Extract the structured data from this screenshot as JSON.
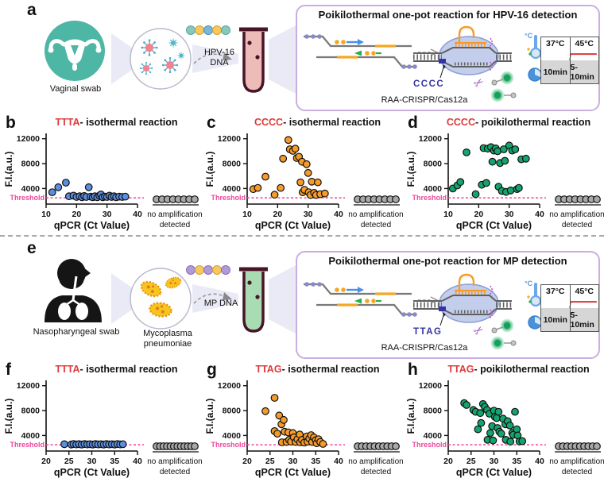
{
  "colors": {
    "accent_red": "#e03a3a",
    "threshold_pink": "#f0459a",
    "blue_point": "#5c8ee0",
    "orange_point": "#f59b2c",
    "green_point": "#14a56f",
    "gray_point": "#a8a8a8",
    "box_border": "#c9aee0",
    "teal_icon": "#4db6a4",
    "pam_navy": "#3434a4"
  },
  "panels": {
    "a": {
      "label": "a",
      "sample_label": "Vaginal swab",
      "dna_label": "HPV-16 DNA",
      "box": {
        "title": "Poikilothermal one-pot reaction for HPV-16 detection",
        "pam_label": "CCCC",
        "system_label": "RAA-CRISPR/Cas12a",
        "thermo_label": "°C",
        "temp_table": {
          "temps": [
            "37°C",
            "45°C"
          ],
          "times": [
            "10min",
            "5-10min"
          ]
        }
      }
    },
    "e": {
      "label": "e",
      "sample_label": "Nasopharyngeal swab",
      "organism_label": "Mycoplasma pneumoniae",
      "dna_label": "MP DNA",
      "box": {
        "title": "Poikilothermal one-pot reaction for MP detection",
        "pam_label": "TTAG",
        "system_label": "RAA-CRISPR/Cas12a",
        "thermo_label": "°C",
        "temp_table": {
          "temps": [
            "37°C",
            "45°C"
          ],
          "times": [
            "10min",
            "5-10min"
          ]
        }
      }
    }
  },
  "chart_data": [
    {
      "id": "b",
      "panel_label": "b",
      "type": "scatter",
      "title_highlight": "TTTA",
      "title_rest": "- isothermal reaction",
      "xlabel": "qPCR (Ct Value)",
      "ylabel": "F.I.(a.u.)",
      "xlim": [
        10,
        40
      ],
      "ylim": [
        1500,
        12600
      ],
      "xticks": [
        10,
        20,
        30,
        40
      ],
      "yticks": [
        4000,
        8000,
        12000
      ],
      "threshold_label": "Threshold",
      "threshold_value": 2500,
      "threshold_color": "#f0459a",
      "point_color": "#5c8ee0",
      "no_amp_points": 8,
      "no_amp_label_line1": "no amplification",
      "no_amp_label_line2": "detected",
      "points": [
        [
          12,
          3400
        ],
        [
          14,
          4200
        ],
        [
          16.5,
          4950
        ],
        [
          17.5,
          2750
        ],
        [
          19,
          2850
        ],
        [
          20,
          2650
        ],
        [
          21,
          2750
        ],
        [
          21.8,
          2600
        ],
        [
          22.5,
          2800
        ],
        [
          23.2,
          2650
        ],
        [
          24,
          4200
        ],
        [
          24.6,
          2700
        ],
        [
          25.3,
          2600
        ],
        [
          26,
          2750
        ],
        [
          26.8,
          2600
        ],
        [
          27.5,
          2850
        ],
        [
          28,
          3050
        ],
        [
          28.6,
          2600
        ],
        [
          29.3,
          2700
        ],
        [
          30,
          2650
        ],
        [
          30.8,
          2850
        ],
        [
          31.5,
          2650
        ],
        [
          32.3,
          2750
        ],
        [
          33,
          2600
        ],
        [
          34,
          2700
        ],
        [
          35,
          2650
        ],
        [
          36,
          2700
        ]
      ]
    },
    {
      "id": "c",
      "panel_label": "c",
      "type": "scatter",
      "title_highlight": "CCCC",
      "title_rest": "- isothermal reaction",
      "xlabel": "qPCR (Ct Value)",
      "ylabel": "F.I.(a.u.)",
      "xlim": [
        10,
        40
      ],
      "ylim": [
        1500,
        12600
      ],
      "xticks": [
        10,
        20,
        30,
        40
      ],
      "yticks": [
        4000,
        8000,
        12000
      ],
      "threshold_label": "Threshold",
      "threshold_value": 2500,
      "threshold_color": "#f0459a",
      "point_color": "#f59b2c",
      "no_amp_points": 8,
      "no_amp_label_line1": "no amplification",
      "no_amp_label_line2": "detected",
      "points": [
        [
          12,
          3900
        ],
        [
          13.5,
          4100
        ],
        [
          16,
          5900
        ],
        [
          19,
          3000
        ],
        [
          21,
          4100
        ],
        [
          21.8,
          8800
        ],
        [
          23.5,
          11800
        ],
        [
          24,
          10300
        ],
        [
          25,
          10050
        ],
        [
          25.8,
          10400
        ],
        [
          26.3,
          8900
        ],
        [
          27,
          9100
        ],
        [
          27.5,
          5000
        ],
        [
          28,
          8300
        ],
        [
          28.2,
          3400
        ],
        [
          28.8,
          3800
        ],
        [
          29.5,
          7900
        ],
        [
          30,
          6500
        ],
        [
          30.2,
          3400
        ],
        [
          30.8,
          2950
        ],
        [
          31.2,
          5100
        ],
        [
          32,
          3300
        ],
        [
          32.6,
          2950
        ],
        [
          33.2,
          5000
        ],
        [
          34,
          3100
        ],
        [
          35.5,
          3200
        ]
      ]
    },
    {
      "id": "d",
      "panel_label": "d",
      "type": "scatter",
      "title_highlight": "CCCC",
      "title_rest": "- poikilothermal reaction",
      "xlabel": "qPCR (Ct Value)",
      "ylabel": "F.I.(a.u.)",
      "xlim": [
        10,
        40
      ],
      "ylim": [
        1500,
        12600
      ],
      "xticks": [
        10,
        20,
        30,
        40
      ],
      "yticks": [
        4000,
        8000,
        12000
      ],
      "threshold_label": "Threshold",
      "threshold_value": 2500,
      "threshold_color": "#f0459a",
      "point_color": "#14a56f",
      "no_amp_points": 8,
      "no_amp_label_line1": "no amplification",
      "no_amp_label_line2": "detected",
      "points": [
        [
          11.5,
          4000
        ],
        [
          13,
          4500
        ],
        [
          14,
          5050
        ],
        [
          16,
          9800
        ],
        [
          19,
          3100
        ],
        [
          21,
          4600
        ],
        [
          21.6,
          10500
        ],
        [
          22.5,
          4900
        ],
        [
          23,
          10400
        ],
        [
          24,
          10650
        ],
        [
          24.5,
          8300
        ],
        [
          25,
          10100
        ],
        [
          25.6,
          10450
        ],
        [
          26.2,
          10000
        ],
        [
          26.5,
          4300
        ],
        [
          27,
          8100
        ],
        [
          27.6,
          3600
        ],
        [
          28.2,
          10300
        ],
        [
          28.6,
          8450
        ],
        [
          29,
          3450
        ],
        [
          30,
          10900
        ],
        [
          30.5,
          3700
        ],
        [
          31,
          10100
        ],
        [
          32,
          10300
        ],
        [
          32.6,
          3900
        ],
        [
          33.2,
          4100
        ],
        [
          34,
          8700
        ],
        [
          35.5,
          8800
        ]
      ]
    },
    {
      "id": "f",
      "panel_label": "f",
      "type": "scatter",
      "title_highlight": "TTTA",
      "title_rest": "- isothermal reaction",
      "xlabel": "qPCR (Ct Value)",
      "ylabel": "F.I.(a.u.)",
      "xlim": [
        20,
        40
      ],
      "ylim": [
        1500,
        12600
      ],
      "xticks": [
        20,
        25,
        30,
        35,
        40
      ],
      "yticks": [
        4000,
        8000,
        12000
      ],
      "threshold_label": "Threshold",
      "threshold_value": 2500,
      "threshold_color": "#f0459a",
      "point_color": "#5c8ee0",
      "no_amp_points": 12,
      "no_amp_label_line1": "no amplification",
      "no_amp_label_line2": "detected",
      "points": [
        [
          24,
          2600
        ],
        [
          25.5,
          2550
        ],
        [
          26,
          2620
        ],
        [
          26.6,
          2560
        ],
        [
          27.2,
          2610
        ],
        [
          27.8,
          2550
        ],
        [
          28.4,
          2620
        ],
        [
          29,
          2560
        ],
        [
          29.6,
          2600
        ],
        [
          30.2,
          2550
        ],
        [
          30.8,
          2620
        ],
        [
          31.4,
          2560
        ],
        [
          32,
          2600
        ],
        [
          32.6,
          2550
        ],
        [
          33.2,
          2620
        ],
        [
          33.8,
          2560
        ],
        [
          34.4,
          2600
        ],
        [
          35,
          2550
        ],
        [
          35.6,
          2620
        ],
        [
          36.2,
          2560
        ],
        [
          36.8,
          2600
        ]
      ]
    },
    {
      "id": "g",
      "panel_label": "g",
      "type": "scatter",
      "title_highlight": "TTAG",
      "title_rest": "- isothermal reaction",
      "xlabel": "qPCR (Ct Value)",
      "ylabel": "F.I.(a.u.)",
      "xlim": [
        20,
        40
      ],
      "ylim": [
        1500,
        12600
      ],
      "xticks": [
        20,
        25,
        30,
        35,
        40
      ],
      "yticks": [
        4000,
        8000,
        12000
      ],
      "threshold_label": "Threshold",
      "threshold_value": 2500,
      "threshold_color": "#f0459a",
      "point_color": "#f59b2c",
      "no_amp_points": 10,
      "no_amp_label_line1": "no amplification",
      "no_amp_label_line2": "detected",
      "points": [
        [
          24,
          7900
        ],
        [
          26,
          10050
        ],
        [
          26,
          4700
        ],
        [
          26.6,
          4300
        ],
        [
          27,
          7200
        ],
        [
          27.5,
          5800
        ],
        [
          27.6,
          2900
        ],
        [
          28,
          6500
        ],
        [
          28.2,
          4600
        ],
        [
          28.6,
          2950
        ],
        [
          29,
          4500
        ],
        [
          29.2,
          3300
        ],
        [
          29.6,
          3000
        ],
        [
          30,
          4400
        ],
        [
          30.2,
          3700
        ],
        [
          30.6,
          2950
        ],
        [
          31,
          3400
        ],
        [
          31.5,
          4150
        ],
        [
          31.6,
          2900
        ],
        [
          32,
          3300
        ],
        [
          32.5,
          2850
        ],
        [
          33,
          3850
        ],
        [
          33.2,
          3000
        ],
        [
          33.6,
          3500
        ],
        [
          34,
          4050
        ],
        [
          34.2,
          2950
        ],
        [
          34.6,
          3700
        ],
        [
          35,
          3250
        ],
        [
          35.2,
          2750
        ],
        [
          35.6,
          3400
        ],
        [
          36,
          2950
        ],
        [
          36.6,
          2650
        ]
      ]
    },
    {
      "id": "h",
      "panel_label": "h",
      "type": "scatter",
      "title_highlight": "TTAG",
      "title_rest": "- poikilothermal reaction",
      "xlabel": "qPCR (Ct Value)",
      "ylabel": "F.I.(a.u.)",
      "xlim": [
        20,
        40
      ],
      "ylim": [
        1500,
        12600
      ],
      "xticks": [
        20,
        25,
        30,
        35,
        40
      ],
      "yticks": [
        4000,
        8000,
        12000
      ],
      "threshold_label": "Threshold",
      "threshold_value": 2500,
      "threshold_color": "#f0459a",
      "point_color": "#14a56f",
      "no_amp_points": 10,
      "no_amp_label_line1": "no amplification",
      "no_amp_label_line2": "detected",
      "points": [
        [
          23.5,
          9200
        ],
        [
          24,
          8900
        ],
        [
          25.5,
          8100
        ],
        [
          26,
          7800
        ],
        [
          26.5,
          5000
        ],
        [
          27,
          7600
        ],
        [
          27.2,
          6000
        ],
        [
          27.6,
          9050
        ],
        [
          28,
          8600
        ],
        [
          28.5,
          8100
        ],
        [
          28.6,
          3300
        ],
        [
          29,
          7500
        ],
        [
          29.2,
          4400
        ],
        [
          29.6,
          5500
        ],
        [
          29.8,
          3200
        ],
        [
          30,
          8000
        ],
        [
          30.2,
          7000
        ],
        [
          30.6,
          6800
        ],
        [
          30.8,
          5200
        ],
        [
          31,
          7800
        ],
        [
          31.2,
          4600
        ],
        [
          31.6,
          4300
        ],
        [
          32,
          6700
        ],
        [
          32.5,
          5800
        ],
        [
          32.6,
          3300
        ],
        [
          33,
          6300
        ],
        [
          33.5,
          5600
        ],
        [
          33.6,
          3000
        ],
        [
          34,
          4400
        ],
        [
          34.2,
          4100
        ],
        [
          34.6,
          7800
        ],
        [
          35,
          5000
        ],
        [
          35.2,
          4000
        ],
        [
          35.6,
          3050
        ],
        [
          36.2,
          3100
        ]
      ]
    }
  ]
}
